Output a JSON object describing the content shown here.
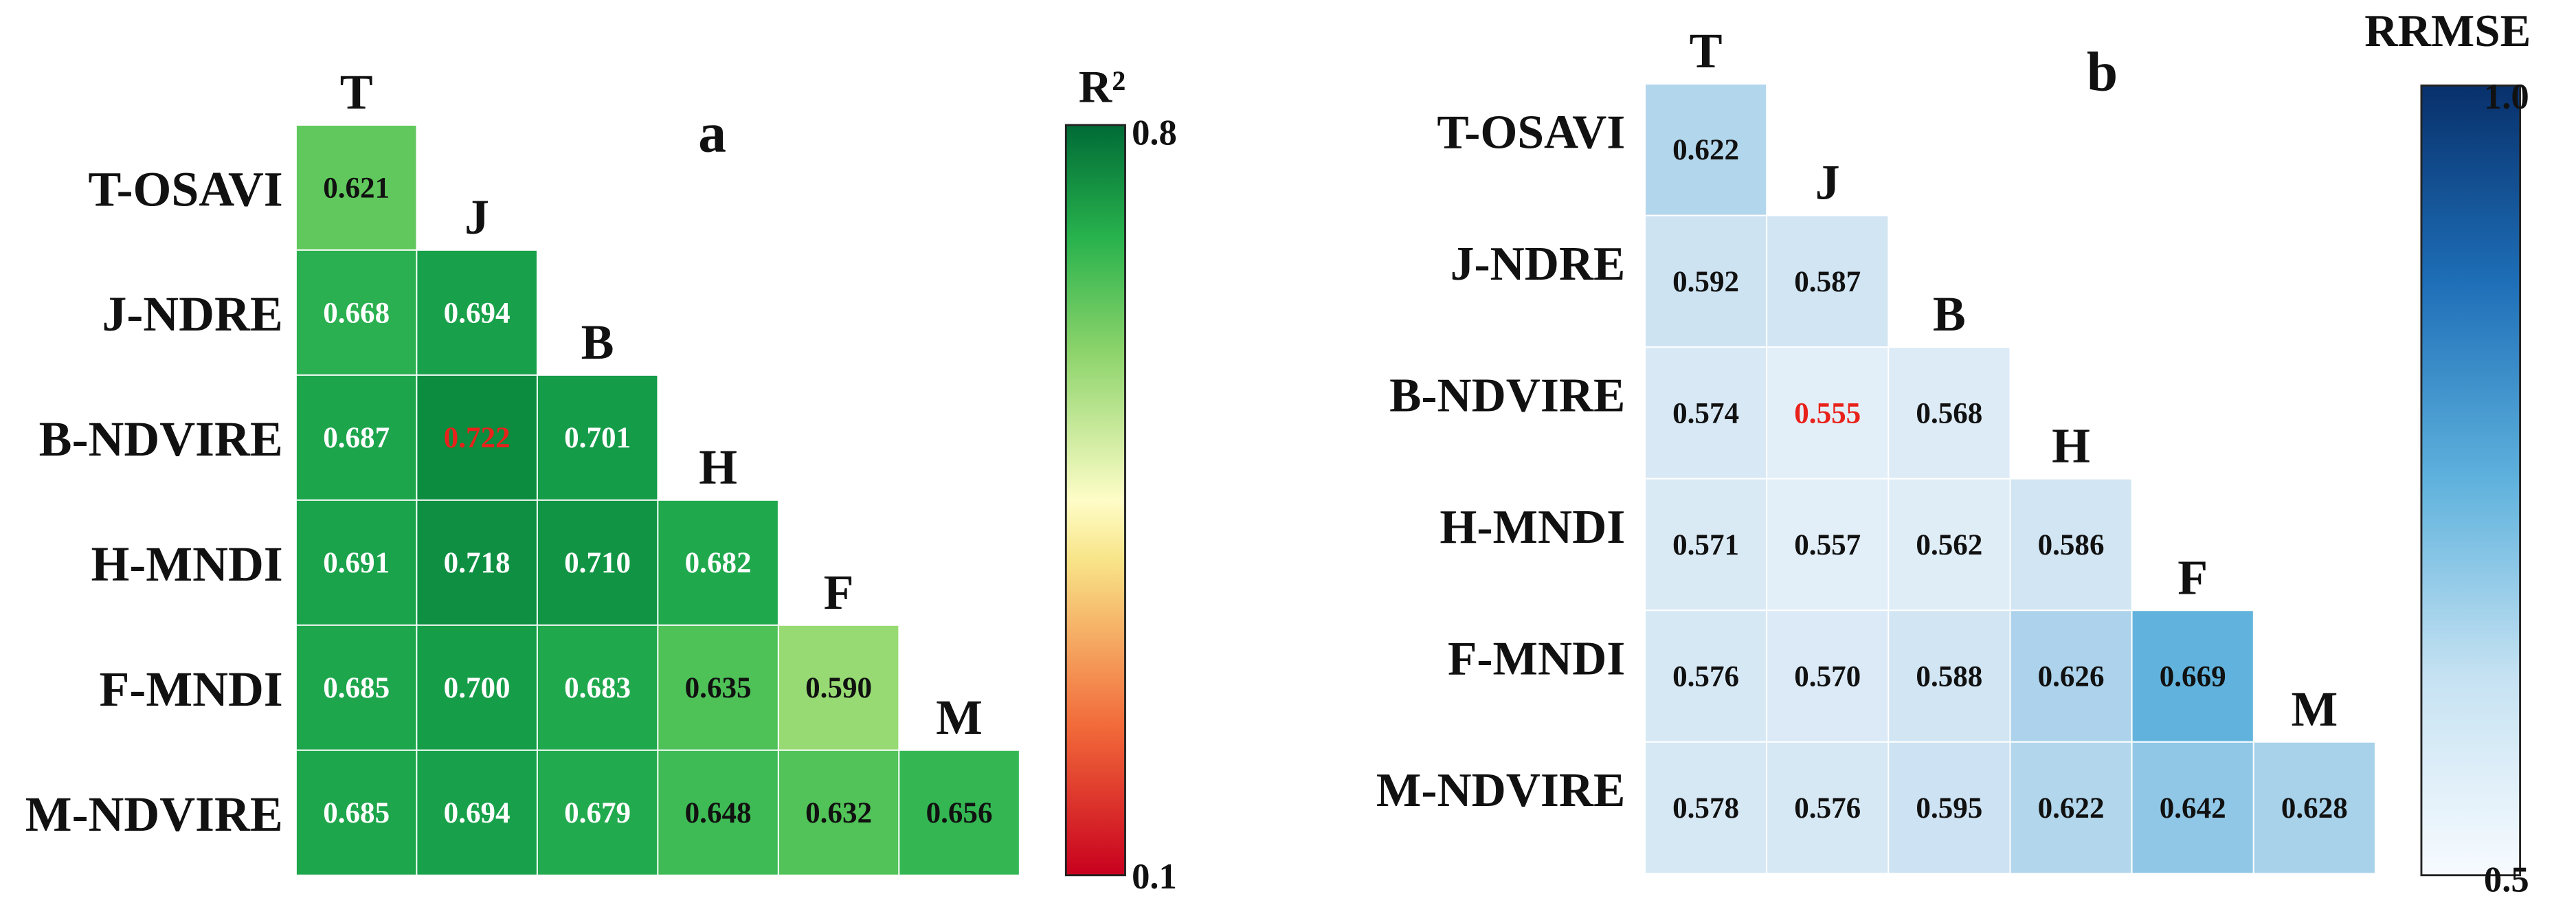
{
  "chart_data": [
    {
      "type": "heatmap",
      "panel_label": "a",
      "metric": "R²",
      "row_labels": [
        "T-OSAVI",
        "J-NDRE",
        "B-NDVIRE",
        "H-MNDI",
        "F-MNDI",
        "M-NDVIRE"
      ],
      "col_labels": [
        "T",
        "J",
        "B",
        "H",
        "F",
        "M"
      ],
      "values": [
        [
          0.621
        ],
        [
          0.668,
          0.694
        ],
        [
          0.687,
          0.722,
          0.701
        ],
        [
          0.691,
          0.718,
          0.71,
          0.682
        ],
        [
          0.685,
          0.7,
          0.683,
          0.635,
          0.59
        ],
        [
          0.685,
          0.694,
          0.679,
          0.648,
          0.632,
          0.656
        ]
      ],
      "cell_text": [
        [
          "0.621"
        ],
        [
          "0.668",
          "0.694"
        ],
        [
          "0.687",
          "0.722",
          "0.701"
        ],
        [
          "0.691",
          "0.718",
          "0.710",
          "0.682"
        ],
        [
          "0.685",
          "0.700",
          "0.683",
          "0.635",
          "0.590"
        ],
        [
          "0.685",
          "0.694",
          "0.679",
          "0.648",
          "0.632",
          "0.656"
        ]
      ],
      "highlight": {
        "row": 2,
        "col": 1,
        "color": "#e8211b"
      },
      "colorbar": {
        "title": "R²",
        "min": 0.1,
        "max": 0.8,
        "min_label": "0.1",
        "max_label": "0.8",
        "colormap": "RdYlGn"
      }
    },
    {
      "type": "heatmap",
      "panel_label": "b",
      "metric": "RRMSE",
      "row_labels": [
        "T-OSAVI",
        "J-NDRE",
        "B-NDVIRE",
        "H-MNDI",
        "F-MNDI",
        "M-NDVIRE"
      ],
      "col_labels": [
        "T",
        "J",
        "B",
        "H",
        "F",
        "M"
      ],
      "values": [
        [
          0.622
        ],
        [
          0.592,
          0.587
        ],
        [
          0.574,
          0.555,
          0.568
        ],
        [
          0.571,
          0.557,
          0.562,
          0.586
        ],
        [
          0.576,
          0.57,
          0.588,
          0.626,
          0.669
        ],
        [
          0.578,
          0.576,
          0.595,
          0.622,
          0.642,
          0.628
        ]
      ],
      "cell_text": [
        [
          "0.622"
        ],
        [
          "0.592",
          "0.587"
        ],
        [
          "0.574",
          "0.555",
          "0.568"
        ],
        [
          "0.571",
          "0.557",
          "0.562",
          "0.586"
        ],
        [
          "0.576",
          "0.570",
          "0.588",
          "0.626",
          "0.669"
        ],
        [
          "0.578",
          "0.576",
          "0.595",
          "0.622",
          "0.642",
          "0.628"
        ]
      ],
      "highlight": {
        "row": 2,
        "col": 1,
        "color": "#e8211b"
      },
      "colorbar": {
        "title": "RRMSE",
        "min": 0.5,
        "max": 1.0,
        "min_label": "0.5",
        "max_label": "1.0",
        "colormap": "Blues"
      }
    }
  ]
}
